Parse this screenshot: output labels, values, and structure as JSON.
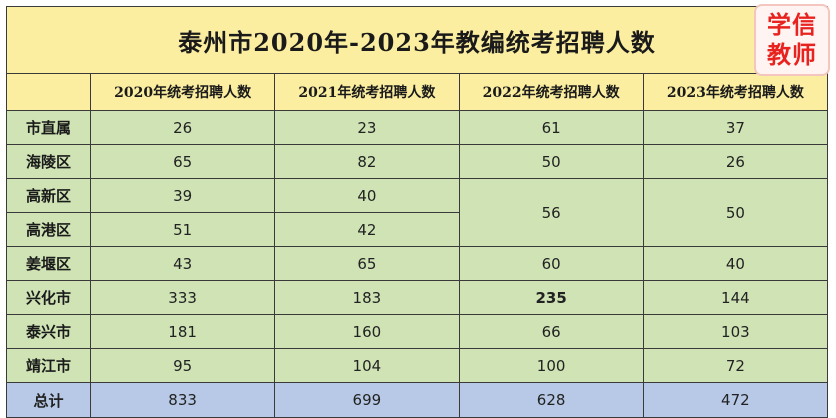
{
  "title": "泰州市2020年-2023年教编统考招聘人数",
  "logo": {
    "line1": "学信",
    "line2": "教师",
    "color": "#e8231f"
  },
  "columns": [
    "",
    "2020年统考招聘人数",
    "2021年统考招聘人数",
    "2022年统考招聘人数",
    "2023年统考招聘人数"
  ],
  "rows": [
    {
      "region": "市直属",
      "y2020": "26",
      "y2021": "23",
      "y2022": "61",
      "y2023": "37"
    },
    {
      "region": "海陵区",
      "y2020": "65",
      "y2021": "82",
      "y2022": "50",
      "y2023": "26"
    },
    {
      "region": "高新区",
      "y2020": "39",
      "y2021": "40"
    },
    {
      "region": "高港区",
      "y2020": "51",
      "y2021": "42"
    },
    {
      "region": "姜堰区",
      "y2020": "43",
      "y2021": "65",
      "y2022": "60",
      "y2023": "40"
    },
    {
      "region": "兴化市",
      "y2020": "333",
      "y2021": "183",
      "y2022": "235",
      "y2023": "144"
    },
    {
      "region": "泰兴市",
      "y2020": "181",
      "y2021": "160",
      "y2022": "66",
      "y2023": "103"
    },
    {
      "region": "靖江市",
      "y2020": "95",
      "y2021": "104",
      "y2022": "100",
      "y2023": "72"
    }
  ],
  "merged_gaoxin_gaogang": {
    "y2022": "56",
    "y2023": "50"
  },
  "total": {
    "region": "总计",
    "y2020": "833",
    "y2021": "699",
    "y2022": "628",
    "y2023": "472"
  },
  "colors": {
    "header": "#fbeea0",
    "body": "#cfe3b5",
    "total": "#b7c9e6"
  }
}
